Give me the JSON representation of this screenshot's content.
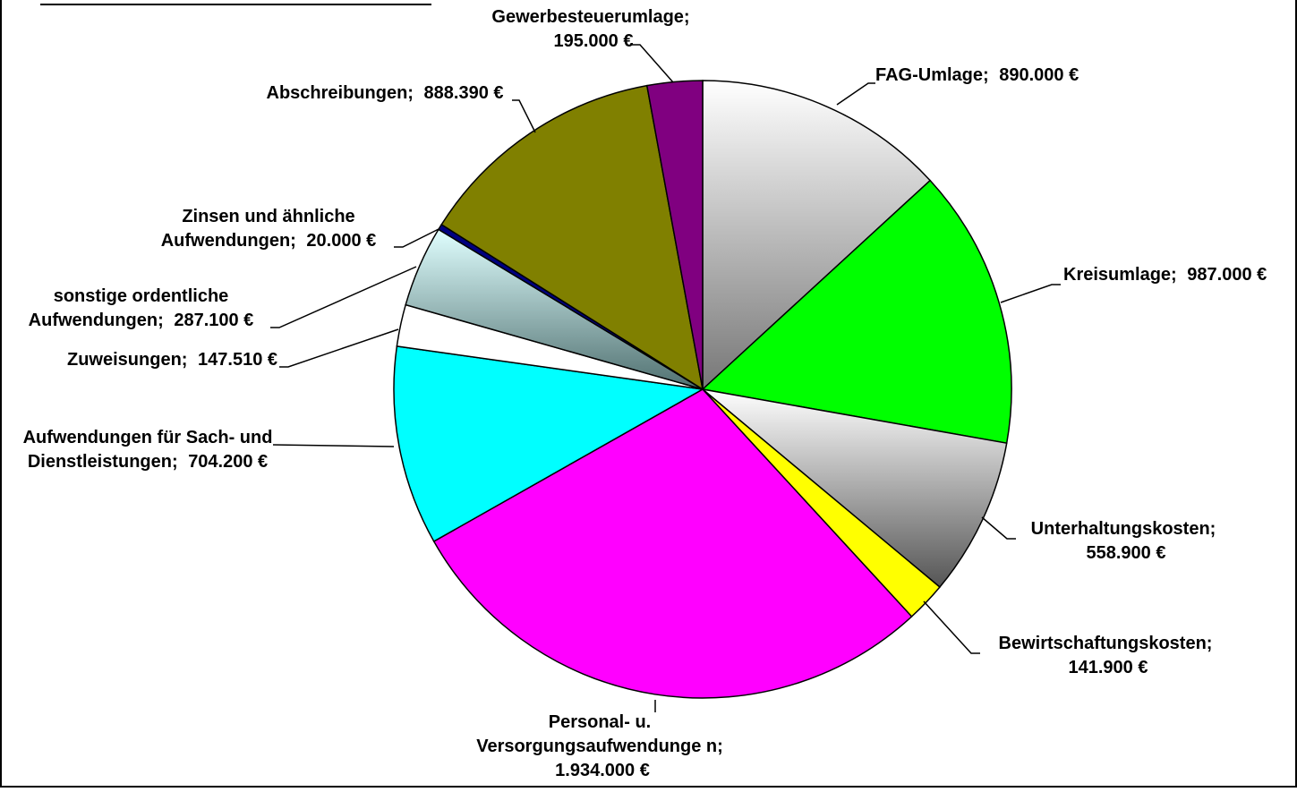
{
  "chart_data": {
    "type": "pie",
    "categories": [
      "FAG-Umlage;",
      "Kreisumlage;",
      "Unterhaltungskosten;",
      "Bewirtschaftungskosten;",
      "Personal- u. Versorgungsaufwendunge n;",
      "Aufwendungen für Sach- und Dienstleistungen;",
      "Zuweisungen;",
      "sonstige ordentliche Aufwendungen;",
      "Zinsen und ähnliche Aufwendungen;",
      "Abschreibungen;",
      "Gewerbesteuerumlage;"
    ],
    "values": [
      890000,
      987000,
      558900,
      141900,
      1934000,
      704200,
      147510,
      287100,
      20000,
      888390,
      195000
    ],
    "value_labels": [
      "890.000 €",
      "987.000 €",
      "558.900 €",
      "141.900 €",
      "1.934.000 €",
      "704.200 €",
      "147.510 €",
      "287.100 €",
      "20.000 €",
      "888.390 €",
      "195.000 €"
    ],
    "colors": [
      "#e6e6e6",
      "#00ff00",
      "#b3b3b3",
      "#ffff00",
      "#ff00ff",
      "#00ffff",
      "#ffffff",
      "#a8d4d8",
      "#000080",
      "#808000",
      "#800080"
    ]
  }
}
